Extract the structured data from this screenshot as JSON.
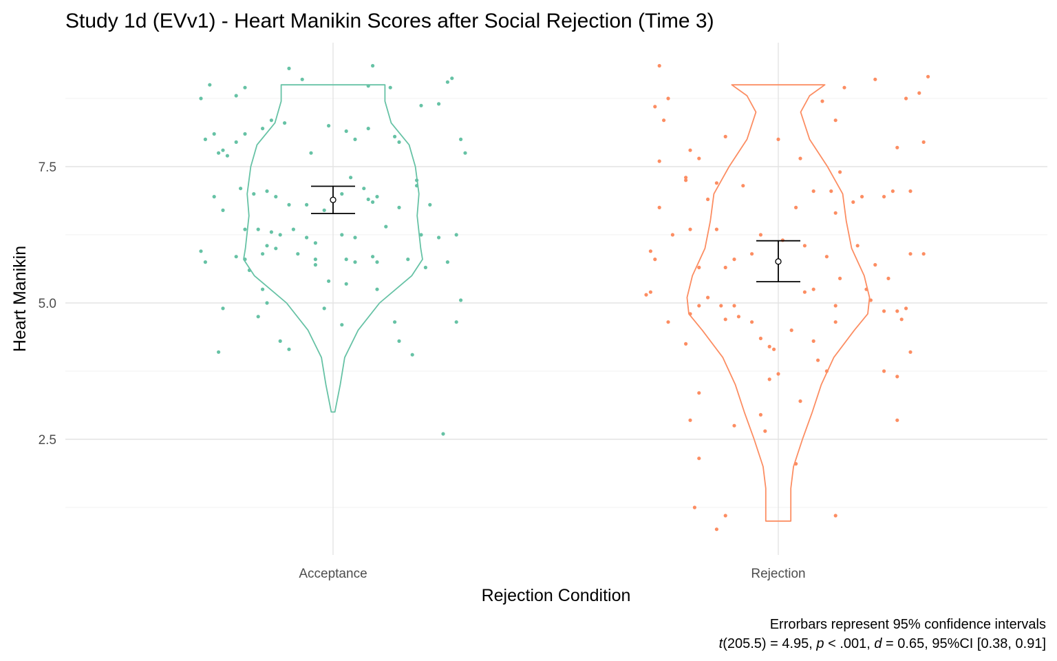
{
  "chart_data": {
    "type": "violin",
    "title": "Study 1d (EVv1) - Heart Manikin Scores after Social Rejection (Time 3)",
    "xlabel": "Rejection Condition",
    "ylabel": "Heart Manikin",
    "categories": [
      "Acceptance",
      "Rejection"
    ],
    "yticks": [
      "2.5",
      "5.0",
      "7.5"
    ],
    "ylim": [
      0.5,
      9.5
    ],
    "grid": true,
    "caption_line1": "Errorbars represent 95% confidence intervals",
    "caption_line2": {
      "t": "t",
      "t_val": "(205.5) = 4.95, ",
      "p": "p",
      "p_val": " < .001, ",
      "d": "d",
      "d_val": " = 0.65, 95%CI [0.38, 0.91]"
    },
    "series": [
      {
        "category": "Acceptance",
        "color": "#66c2a5",
        "range": [
          3,
          9
        ],
        "mean": 6.89,
        "ci": [
          6.64,
          7.14
        ],
        "density": [
          [
            3.0,
            0.02
          ],
          [
            3.5,
            0.08
          ],
          [
            4.0,
            0.13
          ],
          [
            4.5,
            0.28
          ],
          [
            5.0,
            0.52
          ],
          [
            5.5,
            0.88
          ],
          [
            5.8,
            1.0
          ],
          [
            6.0,
            0.98
          ],
          [
            6.3,
            0.96
          ],
          [
            6.6,
            0.94
          ],
          [
            7.0,
            0.96
          ],
          [
            7.5,
            0.92
          ],
          [
            7.9,
            0.85
          ],
          [
            8.3,
            0.65
          ],
          [
            8.7,
            0.58
          ],
          [
            9.0,
            0.58
          ]
        ],
        "points": [
          [
            -0.3,
            8.75
          ],
          [
            -0.28,
            9.0
          ],
          [
            -0.22,
            8.8
          ],
          [
            -0.2,
            8.95
          ],
          [
            -0.1,
            9.3
          ],
          [
            -0.07,
            9.1
          ],
          [
            0.09,
            9.35
          ],
          [
            0.08,
            8.98
          ],
          [
            0.13,
            8.95
          ],
          [
            0.26,
            9.05
          ],
          [
            0.27,
            9.12
          ],
          [
            0.24,
            8.65
          ],
          [
            0.2,
            8.62
          ],
          [
            -0.29,
            8.0
          ],
          [
            -0.27,
            8.1
          ],
          [
            -0.26,
            7.75
          ],
          [
            -0.25,
            7.8
          ],
          [
            -0.24,
            7.7
          ],
          [
            -0.2,
            8.1
          ],
          [
            -0.22,
            7.95
          ],
          [
            -0.16,
            8.2
          ],
          [
            -0.14,
            8.35
          ],
          [
            -0.11,
            8.3
          ],
          [
            -0.05,
            7.75
          ],
          [
            -0.01,
            8.25
          ],
          [
            0.03,
            8.15
          ],
          [
            0.05,
            8.0
          ],
          [
            0.08,
            8.2
          ],
          [
            0.14,
            8.05
          ],
          [
            0.15,
            7.95
          ],
          [
            0.29,
            8.0
          ],
          [
            0.3,
            7.75
          ],
          [
            -0.27,
            6.95
          ],
          [
            -0.21,
            7.1
          ],
          [
            -0.18,
            7.0
          ],
          [
            -0.15,
            7.05
          ],
          [
            -0.13,
            6.95
          ],
          [
            -0.1,
            6.8
          ],
          [
            -0.06,
            6.8
          ],
          [
            -0.02,
            6.7
          ],
          [
            0.02,
            7.0
          ],
          [
            0.04,
            7.3
          ],
          [
            0.07,
            7.1
          ],
          [
            0.08,
            6.9
          ],
          [
            0.09,
            6.85
          ],
          [
            0.1,
            6.95
          ],
          [
            0.19,
            7.25
          ],
          [
            0.19,
            7.15
          ],
          [
            0.15,
            6.75
          ],
          [
            0.22,
            6.8
          ],
          [
            -0.25,
            6.7
          ],
          [
            -0.2,
            6.35
          ],
          [
            -0.17,
            6.35
          ],
          [
            -0.15,
            6.05
          ],
          [
            -0.14,
            6.3
          ],
          [
            -0.12,
            6.25
          ],
          [
            -0.09,
            6.35
          ],
          [
            -0.06,
            6.2
          ],
          [
            -0.04,
            6.1
          ],
          [
            0.02,
            6.25
          ],
          [
            0.05,
            6.2
          ],
          [
            0.12,
            6.4
          ],
          [
            0.2,
            6.25
          ],
          [
            0.24,
            6.2
          ],
          [
            0.28,
            6.25
          ],
          [
            -0.3,
            5.95
          ],
          [
            -0.29,
            5.75
          ],
          [
            -0.22,
            5.85
          ],
          [
            -0.2,
            5.8
          ],
          [
            -0.19,
            5.6
          ],
          [
            -0.16,
            5.9
          ],
          [
            -0.13,
            6.0
          ],
          [
            -0.08,
            5.9
          ],
          [
            -0.04,
            5.8
          ],
          [
            -0.04,
            5.7
          ],
          [
            0.03,
            5.8
          ],
          [
            0.05,
            5.75
          ],
          [
            0.09,
            5.85
          ],
          [
            0.1,
            5.75
          ],
          [
            0.17,
            5.8
          ],
          [
            0.21,
            5.65
          ],
          [
            0.26,
            5.75
          ],
          [
            -0.25,
            4.9
          ],
          [
            -0.17,
            4.75
          ],
          [
            -0.16,
            5.25
          ],
          [
            -0.15,
            5.0
          ],
          [
            -0.12,
            4.3
          ],
          [
            -0.1,
            4.15
          ],
          [
            -0.01,
            5.4
          ],
          [
            -0.02,
            4.9
          ],
          [
            0.02,
            4.6
          ],
          [
            0.03,
            5.35
          ],
          [
            0.1,
            5.25
          ],
          [
            0.14,
            4.65
          ],
          [
            0.15,
            4.3
          ],
          [
            0.18,
            4.05
          ],
          [
            0.28,
            4.65
          ],
          [
            0.29,
            5.05
          ],
          [
            -0.26,
            4.1
          ],
          [
            0.25,
            2.6
          ]
        ]
      },
      {
        "category": "Rejection",
        "color": "#fc8d62",
        "range": [
          1,
          9
        ],
        "mean": 5.76,
        "ci": [
          5.39,
          6.14
        ],
        "density": [
          [
            1.0,
            0.14
          ],
          [
            1.6,
            0.14
          ],
          [
            2.0,
            0.17
          ],
          [
            2.5,
            0.27
          ],
          [
            3.0,
            0.38
          ],
          [
            3.5,
            0.48
          ],
          [
            4.0,
            0.62
          ],
          [
            4.5,
            0.85
          ],
          [
            4.8,
            1.0
          ],
          [
            5.1,
            1.02
          ],
          [
            5.5,
            0.96
          ],
          [
            6.0,
            0.82
          ],
          [
            6.5,
            0.76
          ],
          [
            7.0,
            0.72
          ],
          [
            7.5,
            0.55
          ],
          [
            8.0,
            0.35
          ],
          [
            8.5,
            0.25
          ],
          [
            8.8,
            0.35
          ],
          [
            9.0,
            0.52
          ]
        ],
        "points": [
          [
            -0.27,
            9.35
          ],
          [
            -0.28,
            8.6
          ],
          [
            -0.25,
            8.75
          ],
          [
            -0.26,
            8.35
          ],
          [
            -0.27,
            7.6
          ],
          [
            -0.21,
            7.3
          ],
          [
            -0.2,
            7.8
          ],
          [
            -0.18,
            7.65
          ],
          [
            -0.14,
            7.2
          ],
          [
            -0.12,
            8.05
          ],
          [
            -0.08,
            7.15
          ],
          [
            0.0,
            8.0
          ],
          [
            0.05,
            7.65
          ],
          [
            0.08,
            7.05
          ],
          [
            0.1,
            8.7
          ],
          [
            0.12,
            7.05
          ],
          [
            0.13,
            8.35
          ],
          [
            0.14,
            7.4
          ],
          [
            0.15,
            8.95
          ],
          [
            0.17,
            6.85
          ],
          [
            0.19,
            6.95
          ],
          [
            0.22,
            9.1
          ],
          [
            0.24,
            6.95
          ],
          [
            0.26,
            7.05
          ],
          [
            0.27,
            7.85
          ],
          [
            0.29,
            8.75
          ],
          [
            0.3,
            7.05
          ],
          [
            0.32,
            8.85
          ],
          [
            0.33,
            7.95
          ],
          [
            0.34,
            9.15
          ],
          [
            -0.29,
            5.95
          ],
          [
            -0.28,
            5.8
          ],
          [
            -0.27,
            6.75
          ],
          [
            -0.24,
            6.25
          ],
          [
            -0.21,
            7.25
          ],
          [
            -0.2,
            6.35
          ],
          [
            -0.18,
            5.65
          ],
          [
            -0.16,
            6.9
          ],
          [
            -0.14,
            6.35
          ],
          [
            -0.12,
            5.65
          ],
          [
            -0.1,
            5.8
          ],
          [
            -0.06,
            5.9
          ],
          [
            -0.04,
            6.25
          ],
          [
            0.01,
            6.15
          ],
          [
            0.04,
            6.75
          ],
          [
            0.06,
            6.05
          ],
          [
            0.08,
            5.25
          ],
          [
            0.11,
            5.85
          ],
          [
            0.13,
            6.65
          ],
          [
            0.14,
            5.45
          ],
          [
            0.18,
            6.05
          ],
          [
            0.2,
            5.25
          ],
          [
            0.22,
            5.7
          ],
          [
            0.25,
            5.45
          ],
          [
            0.3,
            5.9
          ],
          [
            0.33,
            5.9
          ],
          [
            -0.3,
            5.15
          ],
          [
            -0.29,
            5.2
          ],
          [
            -0.25,
            4.65
          ],
          [
            -0.2,
            4.8
          ],
          [
            -0.18,
            4.95
          ],
          [
            -0.16,
            5.1
          ],
          [
            -0.13,
            4.95
          ],
          [
            -0.12,
            4.7
          ],
          [
            -0.1,
            4.95
          ],
          [
            -0.09,
            4.75
          ],
          [
            -0.06,
            4.65
          ],
          [
            -0.04,
            4.35
          ],
          [
            -0.02,
            4.2
          ],
          [
            -0.01,
            4.15
          ],
          [
            0.03,
            4.5
          ],
          [
            0.06,
            5.2
          ],
          [
            0.08,
            4.3
          ],
          [
            0.09,
            3.95
          ],
          [
            0.11,
            3.75
          ],
          [
            0.13,
            4.95
          ],
          [
            0.21,
            5.05
          ],
          [
            0.24,
            4.85
          ],
          [
            0.27,
            4.85
          ],
          [
            0.28,
            4.7
          ],
          [
            0.29,
            4.9
          ],
          [
            0.3,
            4.1
          ],
          [
            -0.21,
            4.25
          ],
          [
            -0.2,
            2.85
          ],
          [
            -0.18,
            3.35
          ],
          [
            -0.1,
            2.75
          ],
          [
            -0.04,
            2.95
          ],
          [
            -0.02,
            3.6
          ],
          [
            0.0,
            3.7
          ],
          [
            0.05,
            3.2
          ],
          [
            -0.03,
            2.65
          ],
          [
            0.04,
            2.05
          ],
          [
            0.13,
            4.65
          ],
          [
            0.27,
            2.85
          ],
          [
            0.27,
            3.65
          ],
          [
            0.24,
            3.75
          ],
          [
            -0.18,
            2.15
          ],
          [
            -0.19,
            1.25
          ],
          [
            -0.12,
            1.1
          ],
          [
            -0.14,
            0.85
          ],
          [
            0.13,
            1.1
          ]
        ]
      }
    ]
  }
}
